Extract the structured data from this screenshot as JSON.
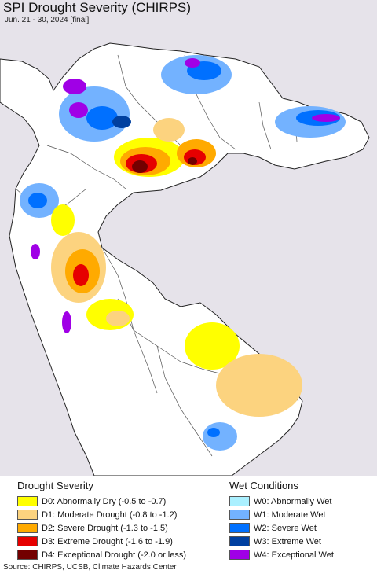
{
  "map": {
    "title": "SPI Drought Severity (CHIRPS)",
    "subtitle": "Jun. 21 - 30, 2024 [final]",
    "background_color": "#e6e3ea",
    "land_color": "#ffffff"
  },
  "legend": {
    "drought_heading": "Drought Severity",
    "drought_items": [
      {
        "label": "D0: Abnormally Dry (-0.5 to -0.7)",
        "color": "#ffff00"
      },
      {
        "label": "D1: Moderate Drought (-0.8 to -1.2)",
        "color": "#fcd37f"
      },
      {
        "label": "D2: Severe Drought (-1.3 to -1.5)",
        "color": "#ffaa00"
      },
      {
        "label": "D3: Extreme Drought (-1.6 to -1.9)",
        "color": "#e60000"
      },
      {
        "label": "D4: Exceptional Drought (-2.0 or less)",
        "color": "#730000"
      }
    ],
    "wet_heading": "Wet Conditions",
    "wet_items": [
      {
        "label": "W0: Abnormally Wet",
        "color": "#aaf0ff"
      },
      {
        "label": "W1: Moderate Wet",
        "color": "#73b2ff"
      },
      {
        "label": "W2: Severe Wet",
        "color": "#0070ff"
      },
      {
        "label": "W3: Extreme Wet",
        "color": "#0040a0"
      },
      {
        "label": "W4: Exceptional Wet",
        "color": "#a000e6"
      }
    ]
  },
  "footer": {
    "source": "Source: CHIRPS, UCSB, Climate Hazards Center"
  }
}
